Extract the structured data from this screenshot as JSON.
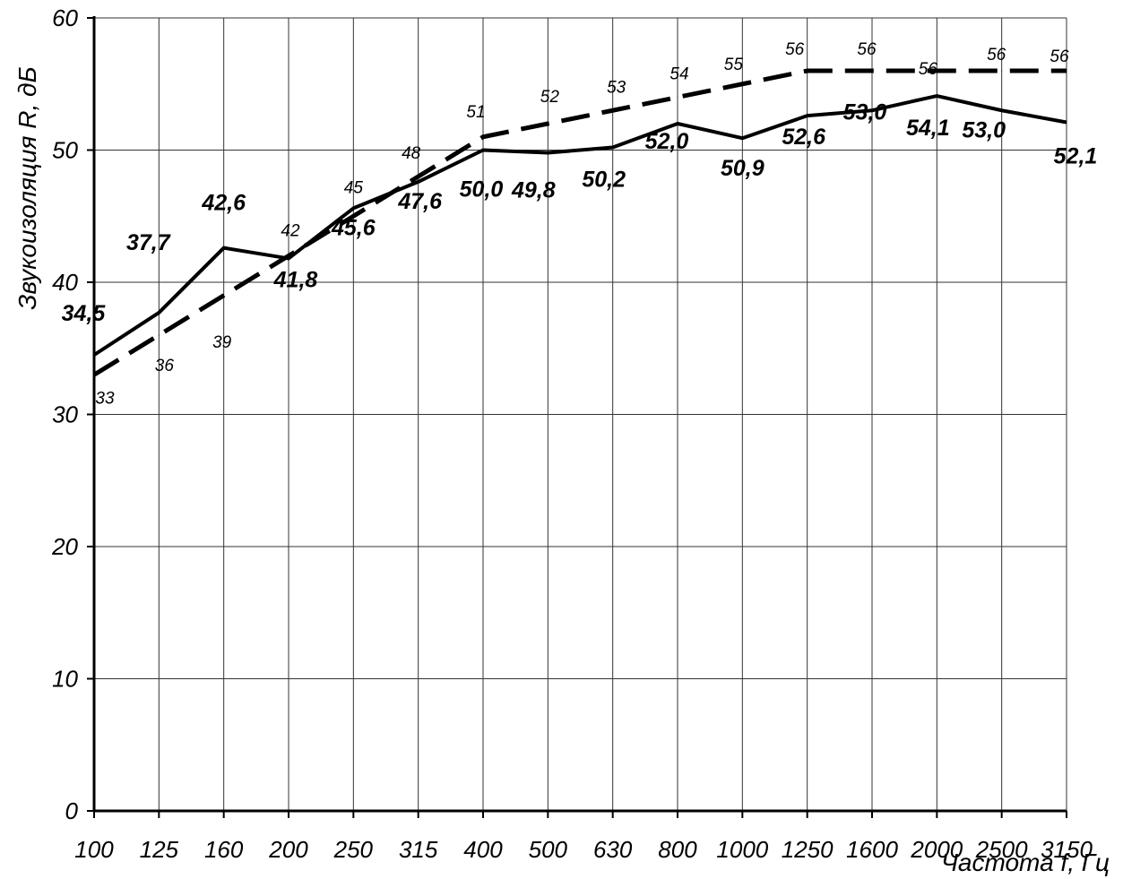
{
  "chart_data": {
    "type": "line",
    "title": "",
    "xlabel": "Частота f, Гц",
    "ylabel": "Звукоизоляция R, дБ",
    "ylim": [
      0,
      60
    ],
    "y_ticks": [
      "0",
      "10",
      "20",
      "30",
      "40",
      "50",
      "60"
    ],
    "y_tick_values": [
      0,
      10,
      20,
      30,
      40,
      50,
      60
    ],
    "categories": [
      "100",
      "125",
      "160",
      "200",
      "250",
      "315",
      "400",
      "500",
      "630",
      "800",
      "1000",
      "1250",
      "1600",
      "2000",
      "2500",
      "3150"
    ],
    "grid": true,
    "legend": "none",
    "series": [
      {
        "style": "solid",
        "values": [
          34.5,
          37.7,
          42.6,
          41.8,
          45.6,
          47.6,
          50.0,
          49.8,
          50.2,
          52.0,
          50.9,
          52.6,
          53.0,
          54.1,
          53.0,
          52.1
        ],
        "labels": [
          "34,5",
          "37,7",
          "42,6",
          "41,8",
          "45,6",
          "47,6",
          "50,0",
          "49,8",
          "50,2",
          "52,0",
          "50,9",
          "52,6",
          "53,0",
          "54,1",
          "53,0",
          "52,1"
        ]
      },
      {
        "style": "dashed",
        "values": [
          33,
          36,
          39,
          42,
          45,
          48,
          51,
          52,
          53,
          54,
          55,
          56,
          56,
          56,
          56,
          56
        ],
        "labels": [
          "33",
          "36",
          "39",
          "42",
          "45",
          "48",
          "51",
          "52",
          "53",
          "54",
          "55",
          "56",
          "56",
          "56",
          "56",
          "56"
        ]
      }
    ],
    "colors": {
      "line": "#000000",
      "grid": "#333333",
      "background": "#ffffff"
    }
  }
}
